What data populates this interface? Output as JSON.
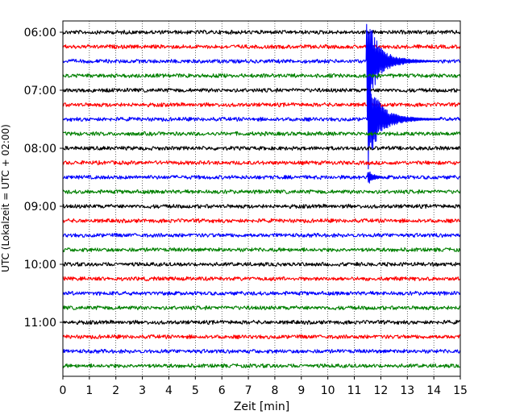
{
  "chart_data": {
    "type": "line",
    "title": "",
    "xlabel": "Zeit  [min]",
    "ylabel": "UTC (Lokalzeit = UTC + 02:00)",
    "xlim": [
      0,
      15
    ],
    "x_ticks": [
      "0",
      "1",
      "2",
      "3",
      "4",
      "5",
      "6",
      "7",
      "8",
      "9",
      "10",
      "11",
      "12",
      "13",
      "14",
      "15"
    ],
    "y_ticks": [
      {
        "label": "06:00",
        "trace_index": 0
      },
      {
        "label": "07:00",
        "trace_index": 4
      },
      {
        "label": "08:00",
        "trace_index": 8
      },
      {
        "label": "09:00",
        "trace_index": 12
      },
      {
        "label": "10:00",
        "trace_index": 16
      },
      {
        "label": "11:00",
        "trace_index": 20
      }
    ],
    "traces_per_hour": 4,
    "minutes_per_trace": 15,
    "trace_count": 24,
    "grid": "vertical dotted",
    "color_cycle": [
      "#000000",
      "#ff0000",
      "#0000ff",
      "#008000"
    ],
    "events": [
      {
        "trace_index": 2,
        "start_min": 11.45,
        "peak": "clipped",
        "note": "large seismic event starting ~06:41 UTC"
      },
      {
        "trace_index": 6,
        "start_min": 11.5,
        "peak": "clipped"
      },
      {
        "trace_index": 10,
        "start_min": 11.5,
        "peak": "moderate"
      }
    ]
  }
}
